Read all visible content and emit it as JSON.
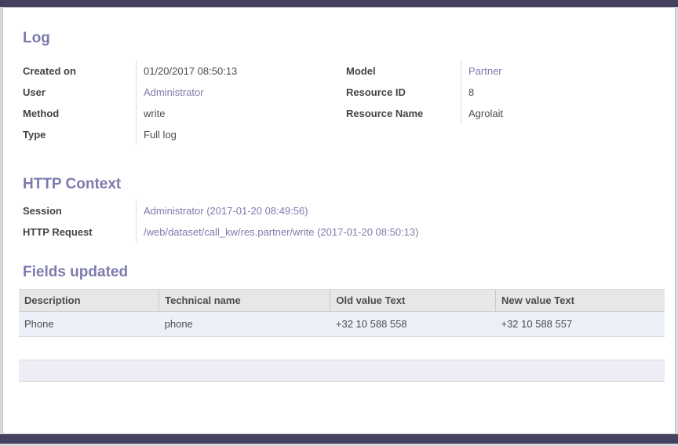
{
  "colors": {
    "accent_purple": "#7c7bad",
    "window_bar": "#454160",
    "table_row_bg": "#eef0f9",
    "table_header_bg": "#e7e7e7"
  },
  "log": {
    "title": "Log",
    "left_fields": [
      {
        "label": "Created on",
        "value": "01/20/2017 08:50:13"
      },
      {
        "label": "User",
        "value": "Administrator"
      },
      {
        "label": "Method",
        "value": "write"
      },
      {
        "label": "Type",
        "value": "Full log"
      }
    ],
    "right_fields": [
      {
        "label": "Model",
        "value": "Partner"
      },
      {
        "label": "Resource ID",
        "value": "8"
      },
      {
        "label": "Resource Name",
        "value": "Agrolait"
      }
    ]
  },
  "http_context": {
    "title": "HTTP Context",
    "fields": [
      {
        "label": "Session",
        "value": "Administrator (2017-01-20 08:49:56)"
      },
      {
        "label": "HTTP Request",
        "value": "/web/dataset/call_kw/res.partner/write (2017-01-20 08:50:13)"
      }
    ]
  },
  "fields_updated": {
    "title": "Fields updated",
    "columns": [
      "Description",
      "Technical name",
      "Old value Text",
      "New value Text"
    ],
    "rows": [
      [
        "Phone",
        "phone",
        "+32 10 588 558",
        "+32 10 588 557"
      ]
    ]
  }
}
